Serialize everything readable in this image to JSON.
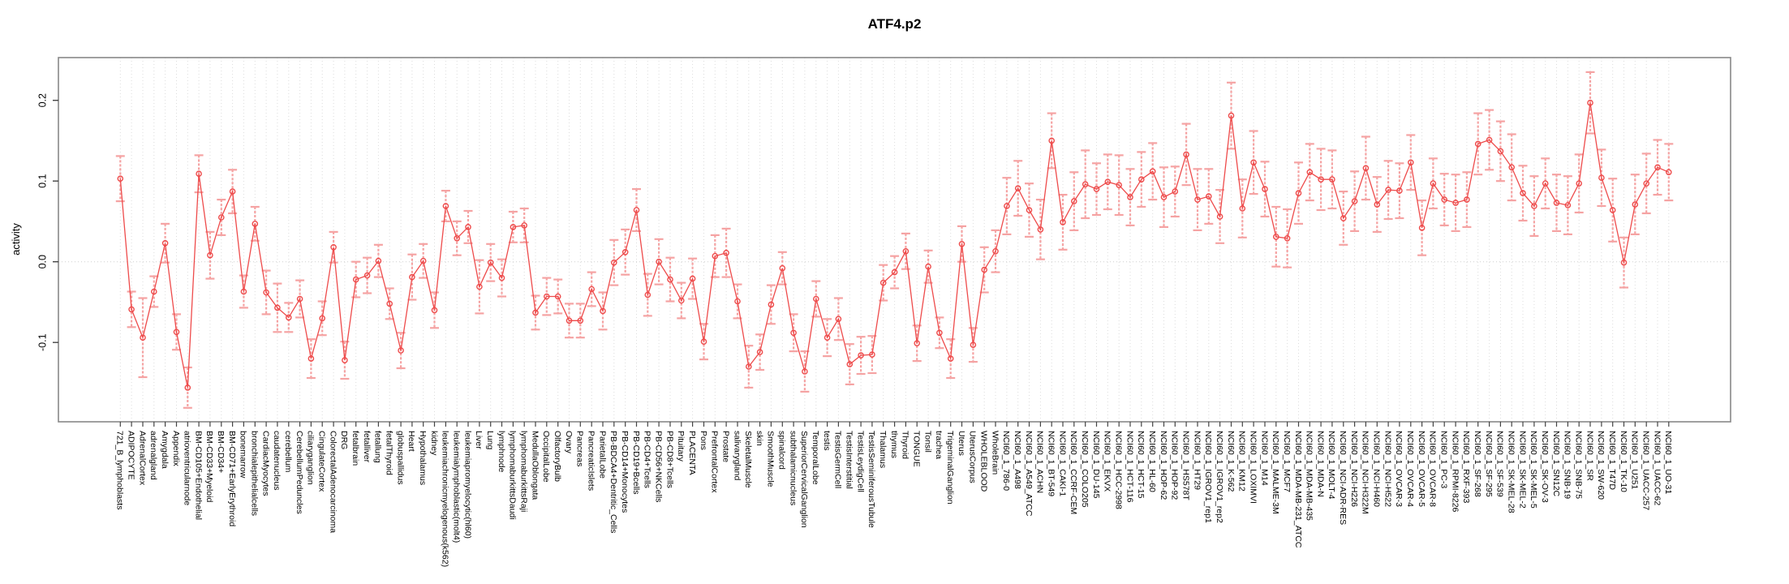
{
  "chart_data": {
    "type": "line",
    "title": "ATF4.p2",
    "ylabel": "activity",
    "xlabel": "",
    "legend_position": "none",
    "grid": "dotted-vertical-per-category-and-dotted-zero-line",
    "error_bars": true,
    "yticks": [
      -0.1,
      0.0,
      0.1,
      0.2
    ],
    "ylim": [
      -0.198,
      0.253
    ],
    "colors": {
      "series": "#ee4b4b",
      "error_bar": "#f5a3a3",
      "grid": "#dcdcdc",
      "frame": "#888888",
      "tick": "#444444",
      "text": "#000000"
    },
    "categories": [
      "721_B_lymphoblasts",
      "ADIPOCYTE",
      "AdrenalCortex",
      "adrenalgland",
      "Amygdala",
      "Appendix",
      "atrioventricularnode",
      "BM-CD105+Endothelial",
      "BM-CD33+Myeloid",
      "BM-CD34+",
      "BM-CD71+EarlyErythroid",
      "bonemarrow",
      "bronchialepithelialcells",
      "CardiacMyocytes",
      "caudatenucleus",
      "cerebellum",
      "CerebellumPeduncles",
      "ciliaryganglion",
      "CingulateCortex",
      "ColorectalAdenocarcinoma",
      "DRG",
      "fetalbrain",
      "fetalliver",
      "fetallung",
      "fetalThyroid",
      "globuspallidus",
      "Heart",
      "Hypothalamus",
      "kidney",
      "leukemiachronicmyelogenous(k562)",
      "leukemialymphoblastic(molt4)",
      "leukemiapromyelocytic(hl60)",
      "Liver",
      "Lung",
      "lymphnode",
      "lymphomaburkittsDaudi",
      "lymphomaburkittsRaji",
      "MedullaOblongata",
      "OccipitalLobe",
      "OlfactoryBulb",
      "Ovary",
      "Pancreas",
      "PancreaticIslets",
      "ParietalLobe",
      "PB-BDCA4+Dentritic_Cells",
      "PB-CD14+Monocytes",
      "PB-CD19+Bcells",
      "PB-CD4+Tcells",
      "PB-CD56+NKCells",
      "PB-CD8+Tcells",
      "Pituitary",
      "PLACENTA",
      "Pons",
      "PrefrontalCortex",
      "Prostate",
      "salivarygland",
      "SkeletalMuscle",
      "skin",
      "SmoothMuscle",
      "spinalcord",
      "subthalamicnucleus",
      "SuperiorCervicalGanglion",
      "TemporalLobe",
      "testis",
      "TestisGermCell",
      "TestisInterstitial",
      "TestisLeydigCell",
      "TestisSeminiferousTubule",
      "Thalamus",
      "thymus",
      "Thyroid",
      "TONGUE",
      "Tonsil",
      "trachea",
      "TrigeminalGanglion",
      "Uterus",
      "UterusCorpus",
      "WHOLEBLOOD",
      "WholeBrain",
      "NCI60_1_786-0",
      "NCI60_1_A498",
      "NCI60_1_A549_ATCC",
      "NCI60_1_ACHN",
      "NCI60_1_BT-549",
      "NCI60_1_CAKI-1",
      "NCI60_1_CCRF-CEM",
      "NCI60_1_COLO205",
      "NCI60_1_DU-145",
      "NCI60_1_EKVX",
      "NCI60_1_HCC-2998",
      "NCI60_1_HCT-116",
      "NCI60_1_HCT-15",
      "NCI60_1_HL-60",
      "NCI60_1_HOP-62",
      "NCI60_1_HOP-92",
      "NCI60_1_HS578T",
      "NCI60_1_HT29",
      "NCI60_1_IGROV1_rep1",
      "NCI60_1_IGROV1_rep2",
      "NCI60_1_K-562",
      "NCI60_1_KM12",
      "NCI60_1_LOXIMVI",
      "NCI60_1_M14",
      "NCI60_1_MALME-3M",
      "NCI60_1_MCF7",
      "NCI60_1_MDA-MB-231_ATCC",
      "NCI60_1_MDA-MB-435",
      "NCI60_1_MDA-N",
      "NCI60_1_MOLT-4",
      "NCI60_1_NCI-ADR-RES",
      "NCI60_1_NCI-H226",
      "NCI60_1_NCI-H322M",
      "NCI60_1_NCI-H460",
      "NCI60_1_NCI-H522",
      "NCI60_1_OVCAR-3",
      "NCI60_1_OVCAR-4",
      "NCI60_1_OVCAR-5",
      "NCI60_1_OVCAR-8",
      "NCI60_1_PC-3",
      "NCI60_1_RPMI-8226",
      "NCI60_1_RXF-393",
      "NCI60_1_SF-268",
      "NCI60_1_SF-295",
      "NCI60_1_SF-539",
      "NCI60_1_SK-MEL-28",
      "NCI60_1_SK-MEL-2",
      "NCI60_1_SK-MEL-5",
      "NCI60_1_SK-OV-3",
      "NCI60_1_SN12C",
      "NCI60_1_SNB-19",
      "NCI60_1_SNB-75",
      "NCI60_1_SR",
      "NCI60_1_SW-620",
      "NCI60_1_T47D",
      "NCI60_1_TK-10",
      "NCI60_1_U251",
      "NCI60_1_UACC-257",
      "NCI60_1_UACC-62",
      "NCI60_1_UO-31"
    ],
    "values": [
      0.103,
      -0.059,
      -0.094,
      -0.037,
      0.023,
      -0.087,
      -0.156,
      0.109,
      0.008,
      0.055,
      0.087,
      -0.037,
      0.047,
      -0.038,
      -0.057,
      -0.069,
      -0.046,
      -0.12,
      -0.07,
      0.018,
      -0.122,
      -0.022,
      -0.017,
      0.001,
      -0.052,
      -0.11,
      -0.019,
      0.001,
      -0.06,
      0.069,
      0.029,
      0.043,
      -0.031,
      -0.001,
      -0.02,
      0.043,
      0.045,
      -0.063,
      -0.043,
      -0.043,
      -0.073,
      -0.073,
      -0.034,
      -0.061,
      -0.001,
      0.012,
      0.064,
      -0.041,
      0.0,
      -0.022,
      -0.048,
      -0.021,
      -0.099,
      0.007,
      0.011,
      -0.049,
      -0.13,
      -0.112,
      -0.053,
      -0.008,
      -0.088,
      -0.136,
      -0.046,
      -0.094,
      -0.071,
      -0.127,
      -0.116,
      -0.115,
      -0.026,
      -0.013,
      0.013,
      -0.101,
      -0.006,
      -0.088,
      -0.12,
      0.022,
      -0.103,
      -0.01,
      0.013,
      0.069,
      0.091,
      0.064,
      0.04,
      0.15,
      0.049,
      0.075,
      0.096,
      0.09,
      0.099,
      0.095,
      0.08,
      0.102,
      0.112,
      0.08,
      0.087,
      0.133,
      0.077,
      0.081,
      0.056,
      0.181,
      0.066,
      0.123,
      0.09,
      0.031,
      0.029,
      0.085,
      0.111,
      0.102,
      0.102,
      0.054,
      0.075,
      0.116,
      0.071,
      0.089,
      0.088,
      0.123,
      0.042,
      0.097,
      0.077,
      0.073,
      0.077,
      0.146,
      0.151,
      0.137,
      0.117,
      0.085,
      0.069,
      0.097,
      0.073,
      0.07,
      0.097,
      0.197,
      0.104,
      0.064,
      -0.001,
      0.071,
      0.097,
      0.117,
      0.111
    ],
    "se": [
      0.028,
      0.022,
      0.049,
      0.019,
      0.024,
      0.022,
      0.025,
      0.023,
      0.029,
      0.022,
      0.027,
      0.02,
      0.021,
      0.027,
      0.03,
      0.018,
      0.023,
      0.024,
      0.021,
      0.019,
      0.023,
      0.022,
      0.022,
      0.02,
      0.019,
      0.022,
      0.028,
      0.021,
      0.022,
      0.019,
      0.021,
      0.02,
      0.033,
      0.023,
      0.023,
      0.019,
      0.021,
      0.021,
      0.023,
      0.021,
      0.021,
      0.021,
      0.021,
      0.023,
      0.028,
      0.028,
      0.026,
      0.026,
      0.028,
      0.027,
      0.022,
      0.025,
      0.022,
      0.026,
      0.03,
      0.021,
      0.026,
      0.022,
      0.024,
      0.02,
      0.023,
      0.025,
      0.022,
      0.023,
      0.026,
      0.025,
      0.023,
      0.023,
      0.022,
      0.02,
      0.022,
      0.022,
      0.02,
      0.019,
      0.024,
      0.022,
      0.021,
      0.028,
      0.026,
      0.035,
      0.034,
      0.033,
      0.037,
      0.034,
      0.034,
      0.036,
      0.042,
      0.032,
      0.034,
      0.037,
      0.035,
      0.034,
      0.035,
      0.037,
      0.031,
      0.038,
      0.038,
      0.034,
      0.033,
      0.041,
      0.036,
      0.039,
      0.034,
      0.037,
      0.036,
      0.038,
      0.035,
      0.038,
      0.036,
      0.033,
      0.037,
      0.039,
      0.034,
      0.036,
      0.034,
      0.034,
      0.034,
      0.031,
      0.032,
      0.035,
      0.034,
      0.038,
      0.037,
      0.037,
      0.041,
      0.034,
      0.037,
      0.031,
      0.035,
      0.036,
      0.036,
      0.038,
      0.035,
      0.039,
      0.031,
      0.037,
      0.037,
      0.034,
      0.035
    ]
  }
}
